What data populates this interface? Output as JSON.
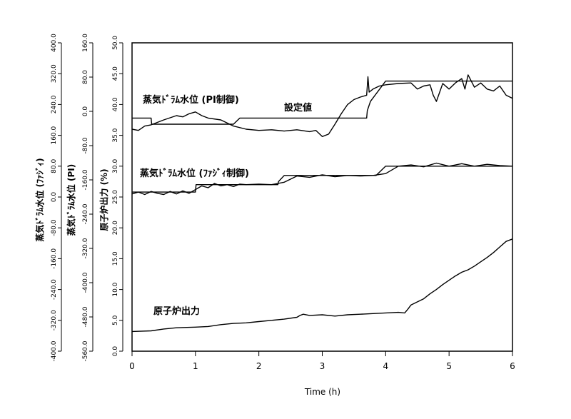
{
  "chart_data": {
    "type": "line",
    "xlabel": "Time (h)",
    "xlim": [
      0,
      6
    ],
    "x_ticks": [
      "0",
      "1",
      "2",
      "3",
      "4",
      "5",
      "6"
    ],
    "axes": [
      {
        "label": "原子炉出力 (%)",
        "range": [
          0,
          50
        ],
        "ticks": [
          "0.0",
          "5.0",
          "10.0",
          "15.0",
          "20.0",
          "25.0",
          "30.0",
          "35.0",
          "40.0",
          "45.0",
          "50.0"
        ]
      },
      {
        "label": "蒸気ﾄﾞﾗﾑ水位 (PI)",
        "range": [
          -560,
          160
        ],
        "ticks": [
          "-560.0",
          "-480.0",
          "-400.0",
          "-320.0",
          "-240.0",
          "-160.0",
          "-80.0",
          "0.0",
          "80.0",
          "160.0"
        ]
      },
      {
        "label": "蒸気ﾄﾞﾗﾑ水位 (ﾌｧｼﾞｨ)",
        "range": [
          -400,
          400
        ],
        "ticks": [
          "-400.0",
          "-320.0",
          "-240.0",
          "-160.0",
          "-80.0",
          "0.0",
          "80.0",
          "160.0",
          "240.0",
          "320.0",
          "400.0"
        ]
      }
    ],
    "annotations": {
      "pi": "蒸気ﾄﾞﾗﾑ水位 (PI制御)",
      "setpoint": "設定値",
      "fuzzy": "蒸気ﾄﾞﾗﾑ水位 (ﾌｧｼﾞｨ制御)",
      "power": "原子炉出力"
    },
    "series": [
      {
        "x": [
          0,
          0.2,
          0.3,
          0.31,
          0.7,
          1.0,
          1.01,
          1.6,
          1.7,
          3.7,
          3.71,
          3.76,
          4.0,
          6.0
        ],
        "y": [
          37.8,
          37.8,
          37.8,
          36.8,
          36.8,
          36.8,
          36.8,
          36.8,
          37.8,
          37.8,
          39.0,
          40.5,
          43.8,
          43.8
        ]
      },
      {
        "x": [
          0,
          0.1,
          0.2,
          0.3,
          0.5,
          0.7,
          0.8,
          0.9,
          1.0,
          1.1,
          1.2,
          1.4,
          1.6,
          1.8,
          2.0,
          2.2,
          2.4,
          2.6,
          2.8,
          2.9,
          3.0,
          3.1,
          3.2,
          3.3,
          3.4,
          3.5,
          3.6,
          3.7,
          3.72,
          3.74,
          3.8,
          3.9,
          4.0,
          4.2,
          4.4,
          4.5,
          4.6,
          4.7,
          4.75,
          4.8,
          4.9,
          5.0,
          5.1,
          5.2,
          5.25,
          5.3,
          5.4,
          5.5,
          5.6,
          5.7,
          5.8,
          5.9,
          6.0
        ],
        "y": [
          36.0,
          35.8,
          36.5,
          36.7,
          37.5,
          38.2,
          38.0,
          38.5,
          38.8,
          38.2,
          37.8,
          37.5,
          36.5,
          36.0,
          35.8,
          35.9,
          35.7,
          35.9,
          35.6,
          35.8,
          34.8,
          35.2,
          36.8,
          38.5,
          40.0,
          40.8,
          41.2,
          41.5,
          44.5,
          42.0,
          42.5,
          43.0,
          43.2,
          43.4,
          43.5,
          42.5,
          43.0,
          43.2,
          41.5,
          40.5,
          43.4,
          42.5,
          43.5,
          44.2,
          42.5,
          44.8,
          42.8,
          43.5,
          42.5,
          42.2,
          43.0,
          41.5,
          41.0
        ]
      },
      {
        "x": [
          0,
          0.6,
          0.61,
          1.0,
          1.01,
          1.5,
          1.51,
          2.3,
          2.31,
          2.4,
          3.7,
          3.85,
          4.0,
          6.0
        ],
        "y": [
          25.8,
          25.8,
          25.8,
          25.8,
          27.0,
          27.0,
          27.0,
          27.0,
          27.5,
          28.5,
          28.5,
          28.5,
          30.0,
          30.0
        ]
      },
      {
        "x": [
          0,
          0.1,
          0.2,
          0.3,
          0.4,
          0.5,
          0.6,
          0.7,
          0.8,
          0.9,
          1.0,
          1.1,
          1.2,
          1.3,
          1.4,
          1.5,
          1.6,
          1.7,
          1.8,
          2.0,
          2.2,
          2.4,
          2.6,
          2.8,
          3.0,
          3.2,
          3.4,
          3.6,
          3.8,
          4.0,
          4.2,
          4.4,
          4.6,
          4.8,
          5.0,
          5.2,
          5.4,
          5.6,
          5.8,
          6.0
        ],
        "y": [
          25.5,
          25.8,
          25.4,
          25.9,
          25.6,
          25.4,
          25.9,
          25.5,
          26.0,
          25.6,
          26.2,
          26.8,
          26.5,
          27.2,
          26.8,
          27.0,
          26.7,
          27.1,
          27.0,
          27.1,
          27.0,
          27.4,
          28.4,
          28.2,
          28.6,
          28.3,
          28.5,
          28.4,
          28.5,
          28.8,
          30.0,
          30.2,
          29.9,
          30.5,
          30.0,
          30.4,
          30.0,
          30.3,
          30.1,
          30.0
        ]
      },
      {
        "x": [
          0,
          0.3,
          0.5,
          0.7,
          1.0,
          1.2,
          1.4,
          1.6,
          1.8,
          2.0,
          2.2,
          2.4,
          2.6,
          2.65,
          2.7,
          2.8,
          3.0,
          3.2,
          3.4,
          3.6,
          3.8,
          4.0,
          4.2,
          4.3,
          4.35,
          4.4,
          4.5,
          4.6,
          4.7,
          4.8,
          4.9,
          5.0,
          5.1,
          5.2,
          5.3,
          5.4,
          5.5,
          5.6,
          5.7,
          5.8,
          5.9,
          6.0
        ],
        "y": [
          3.2,
          3.3,
          3.6,
          3.8,
          3.9,
          4.0,
          4.3,
          4.5,
          4.6,
          4.8,
          5.0,
          5.2,
          5.5,
          5.8,
          6.0,
          5.8,
          5.9,
          5.7,
          5.9,
          6.0,
          6.1,
          6.2,
          6.3,
          6.2,
          6.8,
          7.5,
          8.0,
          8.5,
          9.3,
          10.0,
          10.8,
          11.5,
          12.2,
          12.8,
          13.2,
          13.8,
          14.5,
          15.2,
          16.0,
          16.9,
          17.8,
          18.2
        ]
      }
    ]
  }
}
